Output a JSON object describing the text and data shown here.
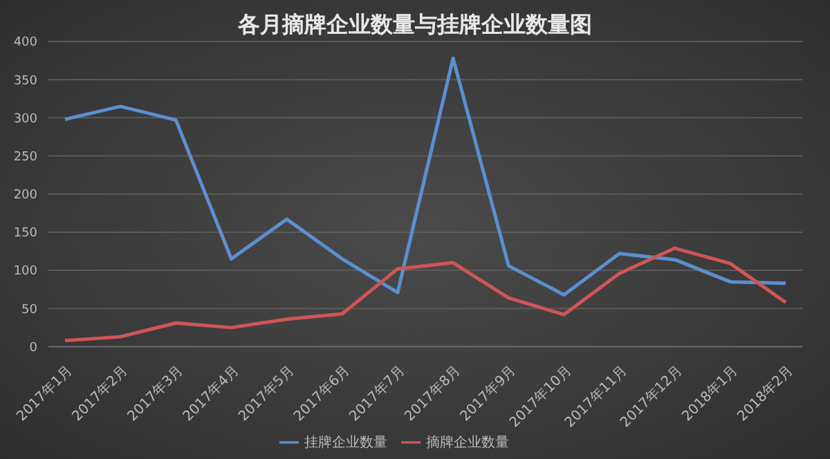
{
  "chart_data": {
    "type": "line",
    "title": "各月摘牌企业数量与挂牌企业数量图",
    "categories": [
      "2017年1月",
      "2017年2月",
      "2017年3月",
      "2017年4月",
      "2017年5月",
      "2017年6月",
      "2017年7月",
      "2017年8月",
      "2017年9月",
      "2017年10月",
      "2017年11月",
      "2017年12月",
      "2018年1月",
      "2018年2月"
    ],
    "series": [
      {
        "name": "挂牌企业数量",
        "color": "#5b8fd0",
        "values": [
          298,
          315,
          297,
          115,
          167,
          115,
          71,
          378,
          106,
          68,
          122,
          114,
          85,
          83
        ]
      },
      {
        "name": "摘牌企业数量",
        "color": "#d05555",
        "values": [
          8,
          13,
          31,
          25,
          36,
          43,
          102,
          110,
          64,
          42,
          96,
          129,
          109,
          58
        ]
      }
    ],
    "ylim": [
      0,
      400
    ],
    "yticks": [
      0,
      50,
      100,
      150,
      200,
      250,
      300,
      350,
      400
    ],
    "grid": "y",
    "legend": "bottom",
    "marker": "none",
    "line_style": "solid"
  }
}
